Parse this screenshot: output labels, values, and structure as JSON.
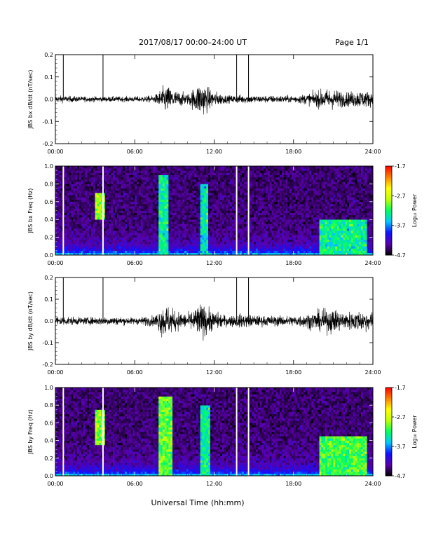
{
  "header": {
    "title": "2017/08/17   00:00–24:00 UT",
    "page": "Page 1/1"
  },
  "footer": {
    "xlabel": "Universal Time (hh:mm)"
  },
  "chart_data": [
    {
      "type": "line",
      "ylabel": "JBS bx dB/dt (nT/sec)",
      "x_ticks": [
        "00:00",
        "06:00",
        "12:00",
        "18:00",
        "24:00"
      ],
      "y_ticks": [
        "0.2",
        "0.1",
        "0.0",
        "-0.1",
        "-0.2"
      ],
      "xlim": [
        0,
        24
      ],
      "ylim": [
        -0.2,
        0.2
      ],
      "spikes_hours": [
        0.6,
        3.6,
        13.7,
        14.6
      ],
      "activity_profile_hours": [
        [
          0,
          0.02
        ],
        [
          2,
          0.015
        ],
        [
          4,
          0.015
        ],
        [
          6,
          0.015
        ],
        [
          7.5,
          0.02
        ],
        [
          8.3,
          0.08
        ],
        [
          9,
          0.05
        ],
        [
          10,
          0.03
        ],
        [
          11,
          0.1
        ],
        [
          11.8,
          0.05
        ],
        [
          13,
          0.02
        ],
        [
          14,
          0.025
        ],
        [
          15.5,
          0.02
        ],
        [
          17,
          0.02
        ],
        [
          18,
          0.02
        ],
        [
          19,
          0.03
        ],
        [
          20,
          0.05
        ],
        [
          20.8,
          0.06
        ],
        [
          22,
          0.04
        ],
        [
          23,
          0.05
        ],
        [
          24,
          0.04
        ]
      ]
    },
    {
      "type": "heatmap",
      "ylabel": "JBS bx Freq (Hz)",
      "x_ticks": [
        "00:00",
        "06:00",
        "12:00",
        "18:00",
        "24:00"
      ],
      "y_ticks": [
        "1.0",
        "0.8",
        "0.6",
        "0.4",
        "0.2",
        "0.0"
      ],
      "xlim": [
        0,
        24
      ],
      "ylim": [
        0.0,
        1.0
      ],
      "colorbar": {
        "label": "Log₁₀ Power",
        "ticks": [
          "-1.7",
          "-2.7",
          "-3.7",
          "-4.7"
        ],
        "range": [
          -4.7,
          -1.7
        ],
        "colors": [
          "#000000",
          "#5a00aa",
          "#1010ff",
          "#00c8ff",
          "#00ff60",
          "#c0ff00",
          "#ffff00",
          "#ff8000",
          "#ff0000"
        ]
      },
      "data_gaps_hours": [
        0.6,
        3.6,
        13.7,
        14.6
      ],
      "features": [
        {
          "hours": [
            3.0,
            3.7
          ],
          "freq": [
            0.4,
            0.7
          ],
          "level": -2.9
        },
        {
          "hours": [
            7.8,
            8.6
          ],
          "freq": [
            0.0,
            0.9
          ],
          "level": -3.3
        },
        {
          "hours": [
            11.0,
            11.6
          ],
          "freq": [
            0.0,
            0.8
          ],
          "level": -3.4
        },
        {
          "hours": [
            20.0,
            23.5
          ],
          "freq": [
            0.0,
            0.4
          ],
          "level": -3.3
        }
      ]
    },
    {
      "type": "line",
      "ylabel": "JBS by dB/dt (nT/sec)",
      "x_ticks": [
        "00:00",
        "06:00",
        "12:00",
        "18:00",
        "24:00"
      ],
      "y_ticks": [
        "0.2",
        "0.1",
        "0.0",
        "-0.1",
        "-0.2"
      ],
      "xlim": [
        0,
        24
      ],
      "ylim": [
        -0.2,
        0.2
      ],
      "spikes_hours": [
        0.6,
        3.6,
        13.7,
        14.6
      ],
      "activity_profile_hours": [
        [
          0,
          0.03
        ],
        [
          2,
          0.02
        ],
        [
          4,
          0.025
        ],
        [
          6,
          0.02
        ],
        [
          7.5,
          0.03
        ],
        [
          8.2,
          0.1
        ],
        [
          9,
          0.06
        ],
        [
          10,
          0.04
        ],
        [
          11,
          0.1
        ],
        [
          11.8,
          0.06
        ],
        [
          13,
          0.03
        ],
        [
          14,
          0.04
        ],
        [
          15.5,
          0.03
        ],
        [
          17,
          0.03
        ],
        [
          18,
          0.03
        ],
        [
          19,
          0.04
        ],
        [
          20,
          0.06
        ],
        [
          20.8,
          0.07
        ],
        [
          22,
          0.05
        ],
        [
          23,
          0.06
        ],
        [
          24,
          0.05
        ]
      ]
    },
    {
      "type": "heatmap",
      "ylabel": "JBS by Freq (Hz)",
      "x_ticks": [
        "00:00",
        "06:00",
        "12:00",
        "18:00",
        "24:00"
      ],
      "y_ticks": [
        "1.0",
        "0.8",
        "0.6",
        "0.4",
        "0.2",
        "0.0"
      ],
      "xlim": [
        0,
        24
      ],
      "ylim": [
        0.0,
        1.0
      ],
      "colorbar": {
        "label": "Log₁₀ Power",
        "ticks": [
          "-1.7",
          "-2.7",
          "-3.7",
          "-4.7"
        ],
        "range": [
          -4.7,
          -1.7
        ],
        "colors": [
          "#000000",
          "#5a00aa",
          "#1010ff",
          "#00c8ff",
          "#00ff60",
          "#c0ff00",
          "#ffff00",
          "#ff8000",
          "#ff0000"
        ]
      },
      "data_gaps_hours": [
        0.6,
        3.6,
        13.7,
        14.6
      ],
      "features": [
        {
          "hours": [
            3.0,
            3.8
          ],
          "freq": [
            0.35,
            0.75
          ],
          "level": -2.9
        },
        {
          "hours": [
            7.8,
            8.8
          ],
          "freq": [
            0.0,
            0.9
          ],
          "level": -3.0
        },
        {
          "hours": [
            11.0,
            11.7
          ],
          "freq": [
            0.0,
            0.8
          ],
          "level": -3.3
        },
        {
          "hours": [
            20.0,
            23.5
          ],
          "freq": [
            0.0,
            0.45
          ],
          "level": -3.1
        }
      ]
    }
  ]
}
